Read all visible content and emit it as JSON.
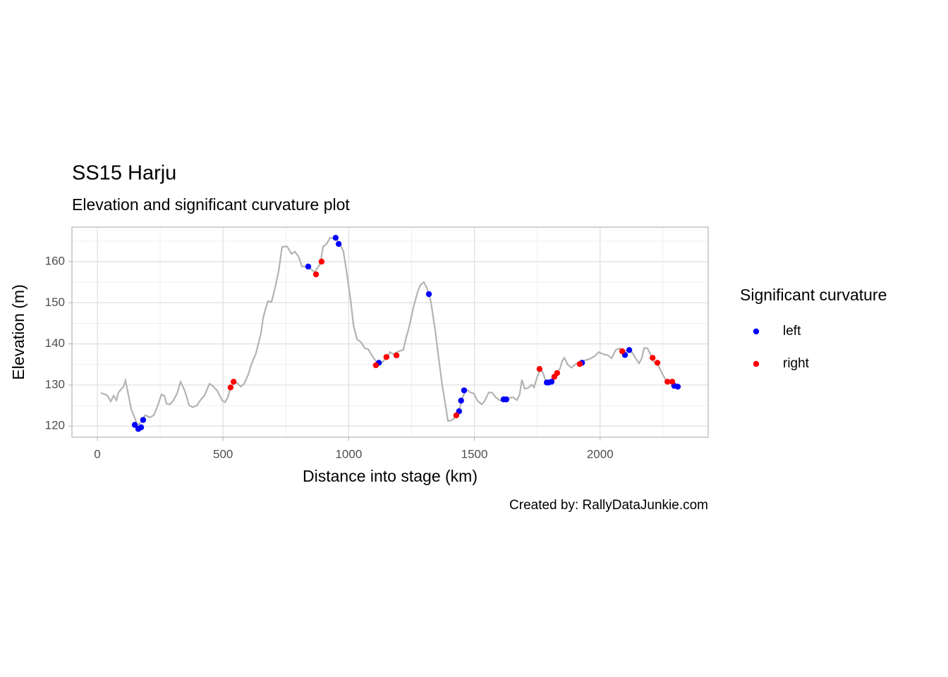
{
  "chart_data": {
    "type": "scatter",
    "title": "SS15 Harju",
    "subtitle": "Elevation and significant curvature plot",
    "x_label": "Distance into stage (km)",
    "y_label": "Elevation (m)",
    "caption": "Created by: RallyDataJunkie.com",
    "xlim": [
      -101,
      2430
    ],
    "ylim": [
      117.3,
      168.4
    ],
    "xticks": [
      0,
      500,
      1000,
      1500,
      2000
    ],
    "yticks": [
      120,
      130,
      140,
      150,
      160
    ],
    "grid": true,
    "minor_grid": true,
    "legend_title": "Significant curvature",
    "legend_position": "right",
    "line": {
      "type": "line",
      "color": "#b3b3b3",
      "x": [
        14,
        39,
        53,
        65,
        76,
        84,
        104,
        112,
        135,
        146,
        160,
        174,
        191,
        208,
        224,
        241,
        255,
        267,
        275,
        289,
        303,
        317,
        331,
        348,
        365,
        379,
        396,
        412,
        426,
        446,
        457,
        477,
        497,
        508,
        519,
        530,
        542,
        556,
        570,
        584,
        600,
        612,
        631,
        651,
        659,
        668,
        679,
        693,
        707,
        721,
        735,
        755,
        772,
        786,
        800,
        814,
        839,
        864,
        887,
        898,
        913,
        926,
        948,
        965,
        979,
        993,
        1007,
        1019,
        1033,
        1049,
        1063,
        1077,
        1100,
        1117,
        1134,
        1153,
        1164,
        1178,
        1198,
        1217,
        1229,
        1240,
        1257,
        1274,
        1285,
        1299,
        1313,
        1327,
        1344,
        1358,
        1372,
        1383,
        1395,
        1412,
        1431,
        1442,
        1453,
        1467,
        1484,
        1498,
        1512,
        1529,
        1540,
        1557,
        1571,
        1585,
        1602,
        1622,
        1639,
        1655,
        1669,
        1680,
        1689,
        1700,
        1714,
        1728,
        1737,
        1751,
        1762,
        1773,
        1785,
        1799,
        1813,
        1827,
        1841,
        1849,
        1858,
        1872,
        1886,
        1903,
        1919,
        1939,
        1958,
        1978,
        1995,
        2012,
        2029,
        2046,
        2062,
        2079,
        2093,
        2107,
        2118,
        2130,
        2141,
        2155,
        2166,
        2175,
        2189,
        2200,
        2211,
        2231,
        2242,
        2256,
        2270,
        2284,
        2298,
        2312
      ],
      "values": [
        128.1,
        127.5,
        126,
        127.4,
        126.3,
        128.2,
        129.6,
        131.1,
        124.1,
        122.4,
        120.2,
        121,
        122.7,
        122.1,
        122.6,
        125.1,
        127.7,
        127.4,
        125.5,
        125.3,
        126.3,
        127.9,
        130.8,
        128.6,
        125.1,
        124.6,
        125,
        126.5,
        127.4,
        130.3,
        129.9,
        128.6,
        126.2,
        125.8,
        127,
        129.4,
        130.5,
        130.5,
        129.6,
        130.3,
        132.5,
        134.9,
        137.7,
        142.6,
        146.1,
        148.3,
        150.4,
        150.2,
        153.6,
        157.6,
        163.6,
        163.7,
        161.9,
        162.4,
        161.3,
        158.8,
        158.8,
        157.4,
        159.5,
        163.6,
        164.4,
        165.8,
        165.6,
        164.3,
        162.5,
        156.9,
        150.9,
        144.5,
        141.1,
        140.4,
        139,
        138.7,
        136.5,
        135.1,
        135.6,
        136.8,
        138,
        137.5,
        138.2,
        138.5,
        141.6,
        144,
        148.8,
        152.6,
        154.3,
        155,
        153.3,
        150.2,
        143.3,
        136.5,
        129.9,
        125.8,
        121.2,
        121.5,
        122.7,
        124.5,
        127,
        128.9,
        128.2,
        127.9,
        126.2,
        125.3,
        126,
        128.2,
        128.1,
        127,
        126.2,
        126.5,
        126.9,
        127,
        126.3,
        127.7,
        131.3,
        129.1,
        129.3,
        130.1,
        129.4,
        132.2,
        133.7,
        133,
        130.6,
        130.5,
        131.5,
        132.7,
        134.1,
        135.8,
        136.6,
        134.9,
        134.2,
        135.1,
        135.6,
        136,
        136.3,
        137,
        138,
        137.5,
        137.3,
        136.5,
        138.5,
        138.9,
        138.2,
        138.4,
        138.5,
        137.7,
        136.5,
        135.3,
        136.5,
        139,
        138.9,
        137.5,
        135.8,
        134.9,
        133.4,
        131.8,
        130.5,
        130.8,
        129.9,
        129.6
      ]
    },
    "series": [
      {
        "name": "left",
        "color": "#0000ff",
        "x": [
          149,
          163,
          174,
          182,
          839,
          948,
          960,
          1120,
          1319,
          1439,
          1447,
          1459,
          1616,
          1627,
          1788,
          1795,
          1807,
          1928,
          2099,
          2116,
          2295,
          2309
        ],
        "values": [
          120.3,
          119.3,
          119.7,
          121.5,
          158.8,
          165.8,
          164.3,
          135.4,
          152.1,
          123.6,
          126.2,
          128.7,
          126.5,
          126.5,
          130.6,
          130.6,
          130.8,
          135.4,
          137.3,
          138.5,
          129.8,
          129.6
        ]
      },
      {
        "name": "right",
        "color": "#ff0000",
        "x": [
          530,
          542,
          870,
          892,
          1108,
          1150,
          1190,
          1428,
          1759,
          1818,
          1829,
          1919,
          2088,
          2209,
          2228,
          2268,
          2287
        ],
        "values": [
          129.4,
          130.8,
          156.9,
          160,
          134.8,
          136.8,
          137.2,
          122.6,
          133.9,
          132,
          132.9,
          135.1,
          138.2,
          136.6,
          135.4,
          130.8,
          130.8
        ]
      }
    ]
  }
}
